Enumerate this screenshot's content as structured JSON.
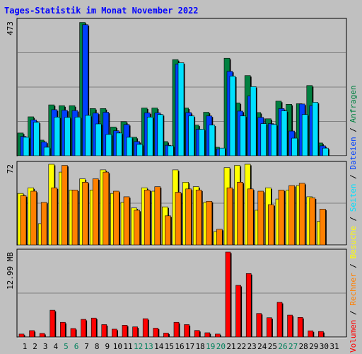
{
  "title": "Tages-Statistik im Monat November 2022",
  "colors": {
    "background": "#c0c0c0",
    "title": "#0000ff",
    "hits": "#008040",
    "files": "#0040ff",
    "pages": "#00e0ff",
    "visits": "#ffff00",
    "sites": "#ff8000",
    "kbytes": "#ff0000",
    "weekend_label": "#00805c",
    "weekday_label": "#000000",
    "grid": "#808080"
  },
  "right_legend": [
    {
      "text": "Volumen",
      "color": "#ff0000"
    },
    {
      "text": " / ",
      "color": "#000000"
    },
    {
      "text": "Rechner",
      "color": "#ff8000"
    },
    {
      "text": " / ",
      "color": "#000000"
    },
    {
      "text": "Besuche",
      "color": "#ffff00"
    },
    {
      "text": " / ",
      "color": "#000000"
    },
    {
      "text": "Seiten",
      "color": "#00e0ff"
    },
    {
      "text": " / ",
      "color": "#000000"
    },
    {
      "text": "Dateien",
      "color": "#0040ff"
    },
    {
      "text": " / ",
      "color": "#000000"
    },
    {
      "text": "Anfragen",
      "color": "#008040"
    }
  ],
  "chart_data": [
    {
      "type": "bar",
      "id": "requests",
      "ylabel": "473",
      "ylim": [
        0,
        473
      ],
      "categories": [
        "1",
        "2",
        "3",
        "4",
        "5",
        "6",
        "7",
        "8",
        "9",
        "10",
        "11",
        "12",
        "13",
        "14",
        "15",
        "16",
        "17",
        "18",
        "19",
        "20",
        "21",
        "22",
        "23",
        "24",
        "25",
        "26",
        "27",
        "28",
        "29",
        "30",
        "31"
      ],
      "series": [
        {
          "name": "Anfragen",
          "values": [
            80,
            137,
            55,
            179,
            176,
            176,
            469,
            166,
            166,
            101,
            120,
            65,
            168,
            168,
            50,
            338,
            168,
            108,
            153,
            30,
            343,
            186,
            282,
            152,
            130,
            192,
            181,
            183,
            247,
            45,
            null
          ]
        },
        {
          "name": "Dateien",
          "values": [
            68,
            126,
            48,
            162,
            160,
            159,
            461,
            150,
            153,
            88,
            110,
            50,
            151,
            151,
            37,
            322,
            152,
            93,
            140,
            24,
            297,
            157,
            210,
            135,
            113,
            166,
            87,
            182,
            176,
            35,
            null
          ]
        },
        {
          "name": "Seiten",
          "values": [
            65,
            118,
            30,
            136,
            135,
            136,
            142,
            112,
            75,
            80,
            65,
            40,
            136,
            145,
            35,
            327,
            140,
            93,
            108,
            27,
            280,
            140,
            243,
            113,
            110,
            158,
            62,
            145,
            188,
            27,
            null
          ]
        }
      ]
    },
    {
      "type": "bar",
      "id": "visits",
      "ylabel": "72",
      "ylim": [
        0,
        72
      ],
      "categories": [
        "1",
        "2",
        "3",
        "4",
        "5",
        "6",
        "7",
        "8",
        "9",
        "10",
        "11",
        "12",
        "13",
        "14",
        "15",
        "16",
        "17",
        "18",
        "19",
        "20",
        "21",
        "22",
        "23",
        "24",
        "25",
        "26",
        "27",
        "28",
        "29",
        "30",
        "31"
      ],
      "series": [
        {
          "name": "Besuche",
          "values": [
            46,
            51,
            19,
            72,
            65,
            49,
            59,
            49,
            67,
            46,
            38,
            33,
            51,
            48,
            34,
            67,
            56,
            52,
            38,
            12,
            69,
            71,
            72,
            31,
            51,
            41,
            49,
            53,
            43,
            21,
            null
          ]
        },
        {
          "name": "Rechner",
          "values": [
            44,
            48,
            38,
            51,
            71,
            49,
            56,
            59,
            65,
            48,
            43,
            31,
            49,
            52,
            26,
            47,
            50,
            49,
            39,
            14,
            51,
            56,
            50,
            48,
            36,
            49,
            53,
            55,
            42,
            32,
            null
          ]
        }
      ]
    },
    {
      "type": "bar",
      "id": "volume",
      "ylabel": "12.99 MB",
      "ylim": [
        0,
        12.99
      ],
      "categories": [
        "1",
        "2",
        "3",
        "4",
        "5",
        "6",
        "7",
        "8",
        "9",
        "10",
        "11",
        "12",
        "13",
        "14",
        "15",
        "16",
        "17",
        "18",
        "19",
        "20",
        "21",
        "22",
        "23",
        "24",
        "25",
        "26",
        "27",
        "28",
        "29",
        "30",
        "31"
      ],
      "series": [
        {
          "name": "Volumen",
          "values": [
            0.45,
            0.98,
            0.55,
            4.1,
            2.25,
            1.3,
            2.7,
            2.9,
            1.9,
            1.2,
            1.8,
            1.55,
            2.8,
            1.35,
            0.6,
            2.25,
            1.9,
            1.0,
            0.65,
            0.45,
            12.99,
            7.9,
            9.7,
            3.6,
            2.95,
            5.3,
            3.35,
            3.0,
            0.95,
            0.85,
            null
          ]
        }
      ]
    }
  ]
}
